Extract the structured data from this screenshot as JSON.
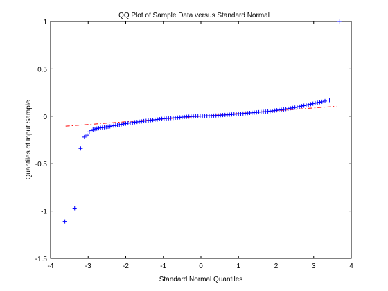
{
  "chart_data": {
    "type": "scatter",
    "title": "QQ Plot of Sample Data versus Standard Normal",
    "xlabel": "Standard Normal Quantiles",
    "ylabel": "Quantiles of Input Sample",
    "xlim": [
      -4,
      4
    ],
    "ylim": [
      -1.5,
      1
    ],
    "x_ticks": [
      -4,
      -3,
      -2,
      -1,
      0,
      1,
      2,
      3,
      4
    ],
    "x_tick_labels": [
      "-4",
      "-3",
      "-2",
      "-1",
      "0",
      "1",
      "2",
      "3",
      "4"
    ],
    "y_ticks": [
      -1.5,
      -1,
      -0.5,
      0,
      0.5,
      1
    ],
    "y_tick_labels": [
      "-1.5",
      "-1",
      "-0.5",
      "0",
      "0.5",
      "1"
    ],
    "grid": false,
    "marker": "+",
    "series_color": "#0000ff",
    "reference_line_color": "#ff0000",
    "reference_line": {
      "style": "dash-dot",
      "x": [
        -3.6,
        3.6
      ],
      "y": [
        -0.105,
        0.105
      ]
    },
    "points": [
      [
        -3.62,
        -1.11
      ],
      [
        -3.36,
        -0.97
      ],
      [
        -3.2,
        -0.34
      ],
      [
        -3.1,
        -0.22
      ],
      [
        -3.03,
        -0.2
      ],
      [
        -2.97,
        -0.165
      ],
      [
        -2.92,
        -0.15
      ],
      [
        -2.87,
        -0.14
      ],
      [
        -2.82,
        -0.135
      ],
      [
        -2.77,
        -0.13
      ],
      [
        -2.72,
        -0.127
      ],
      [
        -2.67,
        -0.123
      ],
      [
        -2.62,
        -0.12
      ],
      [
        -2.57,
        -0.117
      ],
      [
        -2.52,
        -0.113
      ],
      [
        -2.47,
        -0.11
      ],
      [
        -2.42,
        -0.107
      ],
      [
        -2.37,
        -0.103
      ],
      [
        -2.32,
        -0.1
      ],
      [
        -2.27,
        -0.097
      ],
      [
        -2.22,
        -0.093
      ],
      [
        -2.17,
        -0.09
      ],
      [
        -2.12,
        -0.086
      ],
      [
        -2.06,
        -0.082
      ],
      [
        -2.0,
        -0.078
      ],
      [
        -1.94,
        -0.074
      ],
      [
        -1.88,
        -0.07
      ],
      [
        -1.82,
        -0.067
      ],
      [
        -1.76,
        -0.064
      ],
      [
        -1.7,
        -0.061
      ],
      [
        -1.64,
        -0.058
      ],
      [
        -1.58,
        -0.055
      ],
      [
        -1.52,
        -0.052
      ],
      [
        -1.46,
        -0.049
      ],
      [
        -1.4,
        -0.046
      ],
      [
        -1.34,
        -0.043
      ],
      [
        -1.28,
        -0.04
      ],
      [
        -1.22,
        -0.037
      ],
      [
        -1.16,
        -0.034
      ],
      [
        -1.1,
        -0.031
      ],
      [
        -1.04,
        -0.028
      ],
      [
        -0.98,
        -0.026
      ],
      [
        -0.92,
        -0.024
      ],
      [
        -0.86,
        -0.022
      ],
      [
        -0.8,
        -0.02
      ],
      [
        -0.74,
        -0.018
      ],
      [
        -0.68,
        -0.016
      ],
      [
        -0.62,
        -0.014
      ],
      [
        -0.56,
        -0.012
      ],
      [
        -0.5,
        -0.01
      ],
      [
        -0.44,
        -0.008
      ],
      [
        -0.38,
        -0.006
      ],
      [
        -0.32,
        -0.004
      ],
      [
        -0.26,
        -0.003
      ],
      [
        -0.2,
        -0.002
      ],
      [
        -0.14,
        -0.001
      ],
      [
        -0.08,
        0.0
      ],
      [
        -0.02,
        0.001
      ],
      [
        0.04,
        0.002
      ],
      [
        0.1,
        0.003
      ],
      [
        0.16,
        0.004
      ],
      [
        0.22,
        0.005
      ],
      [
        0.28,
        0.006
      ],
      [
        0.34,
        0.007
      ],
      [
        0.4,
        0.008
      ],
      [
        0.46,
        0.009
      ],
      [
        0.52,
        0.011
      ],
      [
        0.58,
        0.012
      ],
      [
        0.64,
        0.014
      ],
      [
        0.7,
        0.015
      ],
      [
        0.76,
        0.017
      ],
      [
        0.82,
        0.019
      ],
      [
        0.88,
        0.021
      ],
      [
        0.94,
        0.023
      ],
      [
        1.0,
        0.025
      ],
      [
        1.06,
        0.027
      ],
      [
        1.12,
        0.029
      ],
      [
        1.18,
        0.031
      ],
      [
        1.24,
        0.033
      ],
      [
        1.3,
        0.035
      ],
      [
        1.36,
        0.037
      ],
      [
        1.42,
        0.039
      ],
      [
        1.48,
        0.041
      ],
      [
        1.54,
        0.043
      ],
      [
        1.6,
        0.045
      ],
      [
        1.66,
        0.047
      ],
      [
        1.72,
        0.049
      ],
      [
        1.78,
        0.051
      ],
      [
        1.84,
        0.054
      ],
      [
        1.9,
        0.057
      ],
      [
        1.96,
        0.06
      ],
      [
        2.02,
        0.063
      ],
      [
        2.08,
        0.066
      ],
      [
        2.14,
        0.069
      ],
      [
        2.2,
        0.072
      ],
      [
        2.26,
        0.076
      ],
      [
        2.32,
        0.08
      ],
      [
        2.38,
        0.084
      ],
      [
        2.44,
        0.088
      ],
      [
        2.5,
        0.092
      ],
      [
        2.56,
        0.097
      ],
      [
        2.62,
        0.102
      ],
      [
        2.68,
        0.107
      ],
      [
        2.74,
        0.112
      ],
      [
        2.8,
        0.117
      ],
      [
        2.86,
        0.122
      ],
      [
        2.92,
        0.127
      ],
      [
        2.98,
        0.133
      ],
      [
        3.04,
        0.138
      ],
      [
        3.1,
        0.143
      ],
      [
        3.16,
        0.148
      ],
      [
        3.22,
        0.153
      ],
      [
        3.3,
        0.16
      ],
      [
        3.42,
        0.17
      ],
      [
        3.68,
        1.0
      ]
    ]
  }
}
